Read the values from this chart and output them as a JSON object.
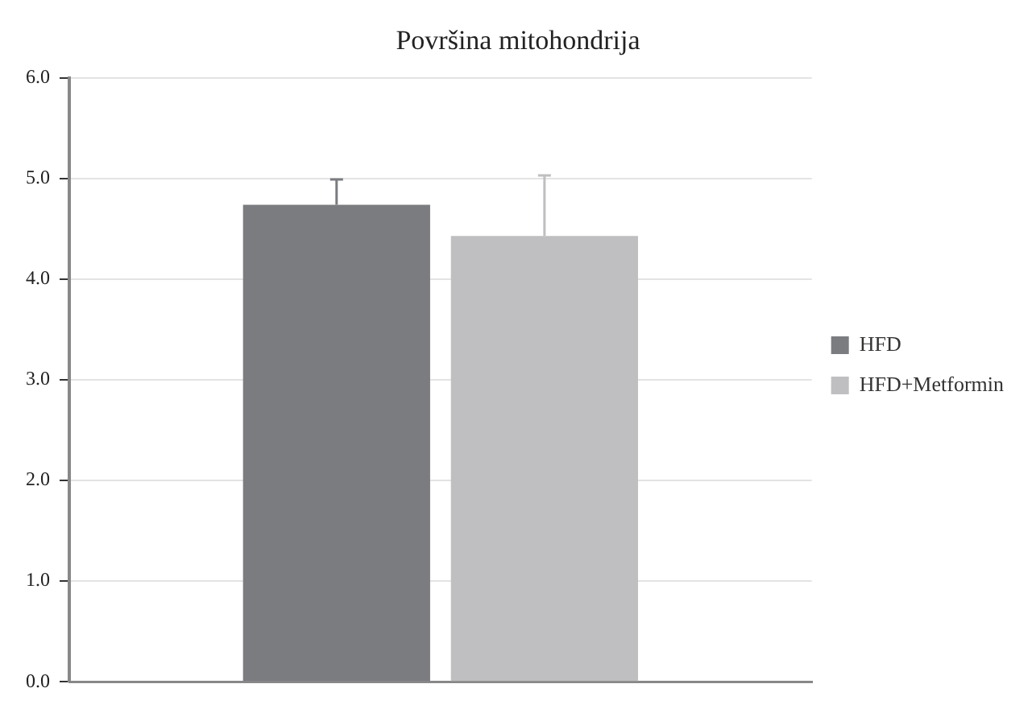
{
  "chart_data": {
    "type": "bar",
    "title": "Površina mitohondrija",
    "categories": [
      null
    ],
    "series": [
      {
        "name": "HFD",
        "color": "#7b7c80",
        "values": [
          4.74
        ],
        "errors": [
          [
            4.74,
            4.99
          ]
        ]
      },
      {
        "name": "HFD+Metformin",
        "color": "#bfbfc1",
        "values": [
          4.43
        ],
        "errors": [
          [
            4.43,
            5.03
          ]
        ]
      }
    ],
    "ylim": [
      0,
      6
    ],
    "yticks": [
      {
        "value": 0,
        "label": "0.0"
      },
      {
        "value": 1,
        "label": "1.0"
      },
      {
        "value": 2,
        "label": "2.0"
      },
      {
        "value": 3,
        "label": "3.0"
      },
      {
        "value": 4,
        "label": "4.0"
      },
      {
        "value": 5,
        "label": "5.0"
      },
      {
        "value": 6,
        "label": "6.0"
      }
    ],
    "grid": "y",
    "legend": "right"
  }
}
